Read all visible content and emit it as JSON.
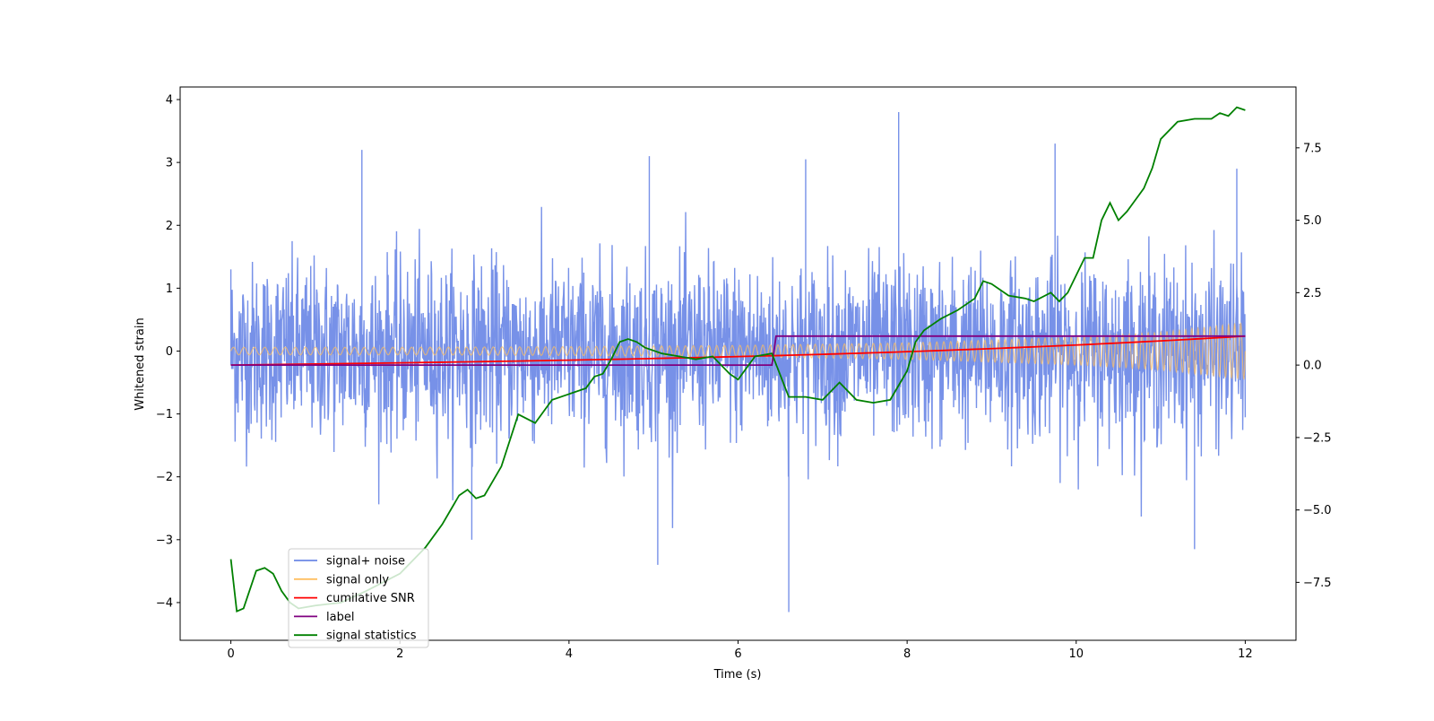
{
  "chart_data": {
    "type": "line",
    "title": "",
    "xlabel": "Time (s)",
    "ylabel": "Whitened strain",
    "y2label": "",
    "xlim": [
      -0.6,
      12.6
    ],
    "ylim": [
      -4.6,
      4.2
    ],
    "y2lim": [
      -9.5,
      9.6
    ],
    "x_ticks": [
      0,
      2,
      4,
      6,
      8,
      10,
      12
    ],
    "y_ticks": [
      -4,
      -3,
      -2,
      -1,
      0,
      1,
      2,
      3,
      4
    ],
    "y2_ticks": [
      -7.5,
      -5.0,
      -2.5,
      0.0,
      2.5,
      5.0,
      7.5
    ],
    "grid": false,
    "legend_placement": "lower left",
    "legend": [
      {
        "name": "signal+ noise",
        "color": "#6b88e6"
      },
      {
        "name": "signal only",
        "color": "#ffbf60"
      },
      {
        "name": "cumilative SNR",
        "color": "#ff0000"
      },
      {
        "name": "label",
        "color": "#800080"
      },
      {
        "name": "signal statistics",
        "color": "#008000"
      }
    ],
    "series": [
      {
        "name": "signal+ noise",
        "axis": "left",
        "color": "#6b88e6",
        "approx_std": 0.7,
        "range": [
          -4.15,
          3.8
        ],
        "notable_points": [
          [
            0.0,
            1.3
          ],
          [
            1.55,
            3.2
          ],
          [
            2.85,
            -3.0
          ],
          [
            4.95,
            3.1
          ],
          [
            5.05,
            -3.4
          ],
          [
            6.6,
            -4.15
          ],
          [
            6.8,
            3.05
          ],
          [
            7.9,
            3.8
          ],
          [
            9.75,
            3.3
          ],
          [
            11.4,
            -3.15
          ],
          [
            11.9,
            2.9
          ]
        ]
      },
      {
        "name": "signal only",
        "axis": "left",
        "color": "#ffbf60",
        "envelope": [
          [
            0,
            0.06
          ],
          [
            2,
            0.06
          ],
          [
            4,
            0.07
          ],
          [
            6,
            0.09
          ],
          [
            8,
            0.13
          ],
          [
            10,
            0.22
          ],
          [
            11,
            0.3
          ],
          [
            12,
            0.45
          ]
        ]
      },
      {
        "name": "cumilative SNR",
        "axis": "right",
        "color": "#ff0000",
        "x": [
          0,
          2,
          4,
          6,
          8,
          10,
          11,
          12
        ],
        "y": [
          0.0,
          0.15,
          0.3,
          0.45,
          0.62,
          0.82,
          0.92,
          1.0
        ]
      },
      {
        "name": "label",
        "axis": "right",
        "color": "#800080",
        "x": [
          0,
          6.4,
          6.45,
          12
        ],
        "y": [
          0.0,
          0.0,
          1.0,
          1.0
        ]
      },
      {
        "name": "signal statistics",
        "axis": "right",
        "color": "#008000",
        "x": [
          0,
          0.07,
          0.15,
          0.3,
          0.4,
          0.5,
          0.6,
          0.7,
          0.8,
          1.0,
          1.3,
          1.6,
          2.0,
          2.3,
          2.5,
          2.6,
          2.7,
          2.8,
          2.9,
          3.0,
          3.2,
          3.4,
          3.6,
          3.8,
          4.0,
          4.2,
          4.3,
          4.4,
          4.5,
          4.6,
          4.7,
          4.8,
          4.9,
          5.0,
          5.1,
          5.3,
          5.5,
          5.7,
          5.9,
          6.0,
          6.2,
          6.4,
          6.6,
          6.8,
          7.0,
          7.2,
          7.4,
          7.6,
          7.8,
          8.0,
          8.1,
          8.2,
          8.4,
          8.6,
          8.8,
          8.9,
          9.0,
          9.2,
          9.4,
          9.5,
          9.7,
          9.8,
          9.9,
          10.0,
          10.1,
          10.2,
          10.3,
          10.4,
          10.5,
          10.6,
          10.7,
          10.8,
          10.9,
          11.0,
          11.2,
          11.4,
          11.6,
          11.7,
          11.8,
          11.9,
          12.0
        ],
        "y": [
          -6.7,
          -8.5,
          -8.4,
          -7.1,
          -7.0,
          -7.2,
          -7.8,
          -8.2,
          -8.4,
          -8.3,
          -8.2,
          -7.8,
          -7.2,
          -6.3,
          -5.5,
          -5.0,
          -4.5,
          -4.3,
          -4.6,
          -4.5,
          -3.5,
          -1.7,
          -2.0,
          -1.2,
          -1.0,
          -0.8,
          -0.4,
          -0.3,
          0.2,
          0.8,
          0.9,
          0.8,
          0.6,
          0.5,
          0.4,
          0.3,
          0.2,
          0.3,
          -0.3,
          -0.5,
          0.3,
          0.4,
          -1.1,
          -1.1,
          -1.2,
          -0.6,
          -1.2,
          -1.3,
          -1.2,
          -0.2,
          0.8,
          1.2,
          1.6,
          1.9,
          2.3,
          2.9,
          2.8,
          2.4,
          2.3,
          2.2,
          2.5,
          2.2,
          2.5,
          3.1,
          3.7,
          3.7,
          5.0,
          5.6,
          5.0,
          5.3,
          5.7,
          6.1,
          6.8,
          7.8,
          8.4,
          8.5,
          8.5,
          8.7,
          8.6,
          8.9,
          8.8
        ]
      }
    ]
  }
}
